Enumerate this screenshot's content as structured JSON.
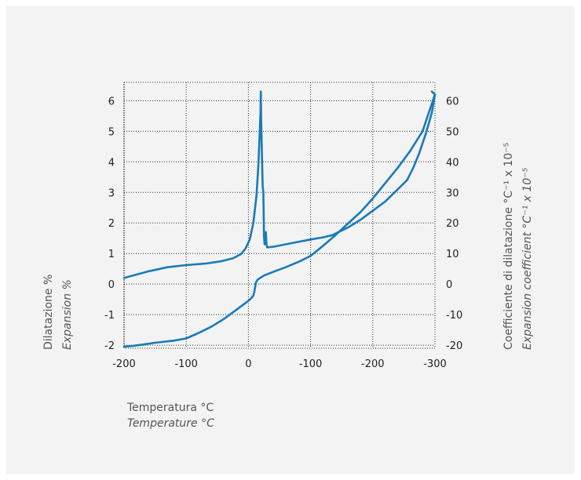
{
  "chart_data": {
    "type": "line",
    "x_tick_labels": [
      "-200",
      "-100",
      "0",
      "-100",
      "-200",
      "-300"
    ],
    "y_left_tick_labels": [
      "6",
      "5",
      "4",
      "3",
      "2",
      "1",
      "0",
      "-1",
      "-2"
    ],
    "y_right_tick_labels": [
      "60",
      "50",
      "40",
      "30",
      "20",
      "10",
      "0",
      "-10",
      "-20"
    ],
    "ylim_left": [
      -2.1,
      6.6
    ],
    "ylim_right": [
      -21,
      66
    ],
    "grid": true,
    "x_label": {
      "line1": "Temperatura °C",
      "line2": "Temperature °C"
    },
    "y_left_label": {
      "line1": "Dilatazione %",
      "line2": "Expansion %"
    },
    "y_right_label": {
      "line1": "Coefficiente di dilatazione °C⁻¹ x 10⁻⁵",
      "line2": "Expansion coefficient °C⁻¹ x 10⁻⁵"
    },
    "color": "#1a7ab8",
    "series": [
      {
        "values_axis": "left",
        "points": [
          [
            -200,
            0.2
          ],
          [
            -160,
            0.42
          ],
          [
            -130,
            0.55
          ],
          [
            -100,
            0.62
          ],
          [
            -70,
            0.67
          ],
          [
            -45,
            0.74
          ],
          [
            -25,
            0.84
          ],
          [
            -12,
            0.98
          ],
          [
            -5,
            1.15
          ],
          [
            2,
            1.45
          ],
          [
            8,
            2.0
          ],
          [
            13,
            2.9
          ],
          [
            16,
            3.9
          ],
          [
            18,
            4.9
          ],
          [
            19.5,
            5.6
          ],
          [
            20,
            6.3
          ],
          [
            20.5,
            5.4
          ],
          [
            22,
            4.0
          ],
          [
            23,
            3.2
          ],
          [
            24,
            3.0
          ],
          [
            24.5,
            2.4
          ],
          [
            25,
            1.6
          ],
          [
            26,
            1.3
          ],
          [
            27,
            1.5
          ],
          [
            28,
            1.7
          ],
          [
            29,
            1.3
          ],
          [
            30,
            1.2
          ],
          [
            40,
            1.22
          ],
          [
            60,
            1.3
          ],
          [
            80,
            1.38
          ],
          [
            100,
            1.46
          ],
          [
            120,
            1.53
          ],
          [
            135,
            1.6
          ],
          [
            160,
            1.85
          ],
          [
            180,
            2.1
          ],
          [
            200,
            2.4
          ],
          [
            220,
            2.7
          ],
          [
            240,
            3.1
          ],
          [
            255,
            3.4
          ],
          [
            265,
            3.8
          ],
          [
            275,
            4.3
          ],
          [
            285,
            4.9
          ],
          [
            295,
            5.6
          ],
          [
            300,
            6.2
          ],
          [
            295,
            6.3
          ]
        ]
      },
      {
        "values_axis": "left",
        "points": [
          [
            -200,
            -2.05
          ],
          [
            -185,
            -2.02
          ],
          [
            -170,
            -1.98
          ],
          [
            -150,
            -1.92
          ],
          [
            -120,
            -1.85
          ],
          [
            -100,
            -1.78
          ],
          [
            -80,
            -1.6
          ],
          [
            -60,
            -1.4
          ],
          [
            -40,
            -1.15
          ],
          [
            -20,
            -0.85
          ],
          [
            0,
            -0.55
          ],
          [
            5,
            -0.45
          ],
          [
            8,
            -0.38
          ],
          [
            10,
            -0.2
          ],
          [
            12,
            0.05
          ],
          [
            15,
            0.15
          ],
          [
            25,
            0.28
          ],
          [
            40,
            0.4
          ],
          [
            60,
            0.55
          ],
          [
            80,
            0.72
          ],
          [
            100,
            0.92
          ],
          [
            120,
            1.25
          ],
          [
            140,
            1.6
          ],
          [
            160,
            1.98
          ],
          [
            180,
            2.35
          ],
          [
            200,
            2.8
          ],
          [
            220,
            3.3
          ],
          [
            240,
            3.8
          ],
          [
            260,
            4.35
          ],
          [
            280,
            5.0
          ],
          [
            300,
            6.2
          ]
        ]
      }
    ]
  }
}
